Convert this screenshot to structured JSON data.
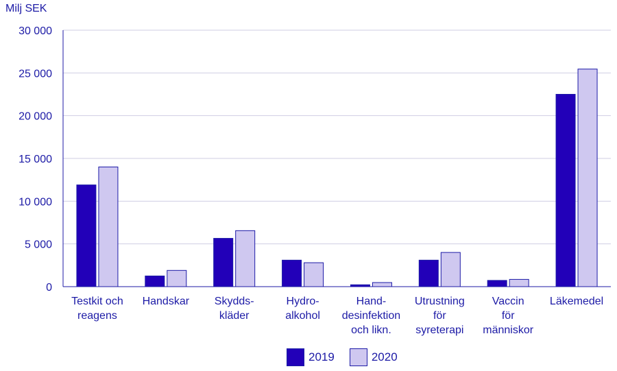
{
  "chart_data": {
    "type": "bar",
    "unit_label": "Milj SEK",
    "categories": [
      [
        "Testkit och",
        "reagens"
      ],
      [
        "Handskar"
      ],
      [
        "Skydds-",
        "kläder"
      ],
      [
        "Hydro-",
        "alkohol"
      ],
      [
        "Hand-",
        "desinfektion",
        "och likn."
      ],
      [
        "Utrustning",
        "för",
        "syreterapi"
      ],
      [
        "Vaccin",
        "för",
        "människor"
      ],
      [
        "Läkemedel"
      ]
    ],
    "series": [
      {
        "name": "2019",
        "color": "#2200b8",
        "values": [
          11900,
          1250,
          5650,
          3100,
          220,
          3100,
          730,
          22500
        ]
      },
      {
        "name": "2020",
        "color": "#cfc8f0",
        "values": [
          14000,
          1900,
          6550,
          2800,
          480,
          4000,
          850,
          25450
        ]
      }
    ],
    "ylim": [
      0,
      30000
    ],
    "yticks": [
      0,
      5000,
      10000,
      15000,
      20000,
      25000,
      30000
    ],
    "ytick_labels": [
      "0",
      "5 000",
      "10 000",
      "15 000",
      "20 000",
      "25 000",
      "30 000"
    ],
    "grid": true,
    "legend_position": "bottom-center"
  }
}
